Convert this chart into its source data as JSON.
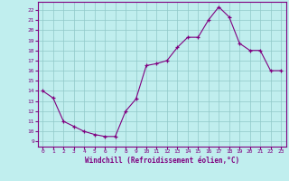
{
  "x": [
    0,
    1,
    2,
    3,
    4,
    5,
    6,
    7,
    8,
    9,
    10,
    11,
    12,
    13,
    14,
    15,
    16,
    17,
    18,
    19,
    20,
    21,
    22,
    23
  ],
  "y": [
    14,
    13.3,
    11,
    10.5,
    10,
    9.7,
    9.5,
    9.5,
    12,
    13.2,
    16.5,
    16.7,
    17,
    18.3,
    19.3,
    19.3,
    21,
    22.3,
    21.3,
    18.7,
    18,
    18,
    16,
    16
  ],
  "line_color": "#800080",
  "marker_color": "#800080",
  "bg_color": "#c0eeee",
  "grid_color": "#90c8c8",
  "tick_color": "#800080",
  "xlabel": "Windchill (Refroidissement éolien,°C)",
  "yticks": [
    9,
    10,
    11,
    12,
    13,
    14,
    15,
    16,
    17,
    18,
    19,
    20,
    21,
    22
  ],
  "xticks": [
    0,
    1,
    2,
    3,
    4,
    5,
    6,
    7,
    8,
    9,
    10,
    11,
    12,
    13,
    14,
    15,
    16,
    17,
    18,
    19,
    20,
    21,
    22,
    23
  ],
  "border_color": "#800080"
}
